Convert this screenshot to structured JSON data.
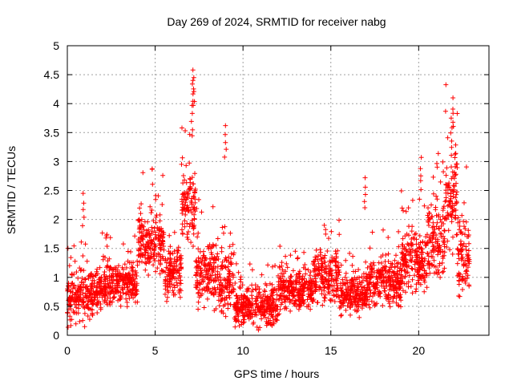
{
  "chart_data": {
    "type": "scatter",
    "title": "Day 269 of 2024, SRMTID for receiver nabg",
    "xlabel": "GPS time / hours",
    "ylabel": "SRMTID / TECUs",
    "xlim": [
      0,
      24
    ],
    "ylim": [
      0,
      5
    ],
    "x_ticks": [
      0,
      5,
      10,
      15,
      20
    ],
    "x_tick_labels": [
      "0",
      "5",
      "10",
      "15",
      "20"
    ],
    "y_ticks": [
      0,
      0.5,
      1,
      1.5,
      2,
      2.5,
      3,
      3.5,
      4,
      4.5,
      5
    ],
    "y_tick_labels": [
      "0",
      "0.5",
      "1",
      "1.5",
      "2",
      "2.5",
      "3",
      "3.5",
      "4",
      "4.5",
      "5"
    ],
    "grid": true,
    "marker": "+",
    "series_color": "#ff0000",
    "series": [
      {
        "name": "SRMTID",
        "note": "approx. 3000 points; mean level sampled per hour segment",
        "segments": [
          {
            "x": [
              0.0,
              0.5
            ],
            "y_mean": 0.6,
            "y_spread": 0.5
          },
          {
            "x": [
              0.5,
              1.5
            ],
            "y_mean": 0.65,
            "y_spread": 0.45
          },
          {
            "x": [
              1.5,
              3.0
            ],
            "y_mean": 0.85,
            "y_spread": 0.45
          },
          {
            "x": [
              3.0,
              4.0
            ],
            "y_mean": 0.9,
            "y_spread": 0.4
          },
          {
            "x": [
              4.0,
              5.5
            ],
            "y_mean": 1.6,
            "y_spread": 0.6
          },
          {
            "x": [
              5.5,
              6.5
            ],
            "y_mean": 1.1,
            "y_spread": 0.5
          },
          {
            "x": [
              6.5,
              7.3
            ],
            "y_mean": 2.2,
            "y_spread": 0.7
          },
          {
            "x": [
              7.3,
              8.5
            ],
            "y_mean": 1.1,
            "y_spread": 0.6
          },
          {
            "x": [
              8.5,
              9.5
            ],
            "y_mean": 0.9,
            "y_spread": 0.6
          },
          {
            "x": [
              9.5,
              12.0
            ],
            "y_mean": 0.5,
            "y_spread": 0.35
          },
          {
            "x": [
              12.0,
              14.0
            ],
            "y_mean": 0.8,
            "y_spread": 0.4
          },
          {
            "x": [
              14.0,
              15.5
            ],
            "y_mean": 1.0,
            "y_spread": 0.45
          },
          {
            "x": [
              15.5,
              17.0
            ],
            "y_mean": 0.7,
            "y_spread": 0.35
          },
          {
            "x": [
              17.0,
              19.0
            ],
            "y_mean": 0.9,
            "y_spread": 0.45
          },
          {
            "x": [
              19.0,
              20.5
            ],
            "y_mean": 1.3,
            "y_spread": 0.55
          },
          {
            "x": [
              20.5,
              21.5
            ],
            "y_mean": 1.6,
            "y_spread": 0.7
          },
          {
            "x": [
              21.5,
              22.2
            ],
            "y_mean": 2.4,
            "y_spread": 0.9
          },
          {
            "x": [
              22.2,
              22.9
            ],
            "y_mean": 1.4,
            "y_spread": 0.8
          }
        ],
        "peaks": [
          {
            "x": 7.15,
            "y": 4.58
          },
          {
            "x": 7.2,
            "y": 4.45
          },
          {
            "x": 7.1,
            "y": 3.97
          },
          {
            "x": 9.0,
            "y": 3.62
          },
          {
            "x": 21.95,
            "y": 4.1
          },
          {
            "x": 21.85,
            "y": 3.75
          },
          {
            "x": 20.15,
            "y": 3.07
          },
          {
            "x": 0.9,
            "y": 2.45
          },
          {
            "x": 16.95,
            "y": 2.72
          }
        ]
      }
    ]
  }
}
